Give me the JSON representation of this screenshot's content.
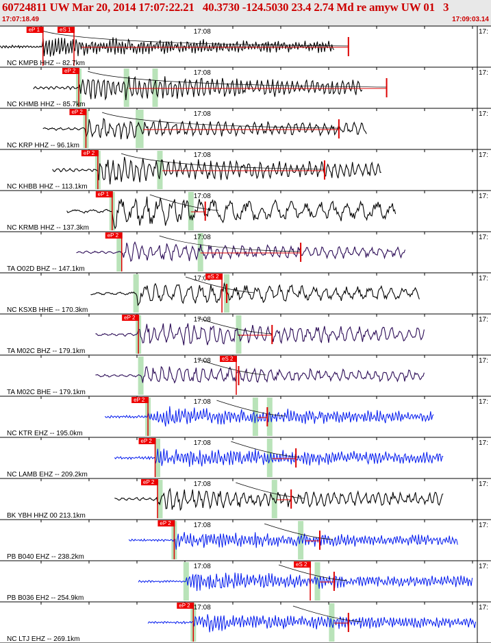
{
  "header": {
    "title": "60724811 UW Mar 20, 2014 17:07:22.21   40.3730 -124.5030 23.4 2.74 Md re amyw UW 01   3",
    "start_time": "17:07:18.49",
    "end_time": "17:09:03.14"
  },
  "tick_label": "17:08",
  "edge_label": "17:",
  "colors": {
    "header_text": "#cc0000",
    "pick_fill": "#ee0000",
    "s_window": "#b9e3b9",
    "trace_black": "#000000",
    "trace_purple": "#2a0a55",
    "trace_blue": "#0018ee",
    "fit_red": "#dd0000"
  },
  "traces": [
    {
      "station": "NC KMPB HHZ -- 82.7km",
      "color": "black",
      "picks": [
        {
          "label": "eP 1",
          "t": 0.09
        },
        {
          "label": "eS 1",
          "t": 0.155
        }
      ],
      "greens": [],
      "start": 0.0,
      "end": 0.7,
      "onset": 0.09,
      "amp": 0.55,
      "period": 3,
      "fit_start": 0.17,
      "fit_end": 0.73,
      "coda": 0.73
    },
    {
      "station": "NC KHMB HHZ -- 85.7km",
      "color": "black",
      "picks": [
        {
          "label": "eP 2",
          "t": 0.165
        }
      ],
      "greens": [
        0.165,
        0.265,
        0.325
      ],
      "start": 0.07,
      "end": 0.76,
      "onset": 0.165,
      "amp": 0.7,
      "period": 5,
      "fit_start": 0.27,
      "fit_end": 0.81,
      "coda": 0.81
    },
    {
      "station": "NC KRP HHZ -- 96.1km",
      "color": "black",
      "picks": [
        {
          "label": "eP 2",
          "t": 0.18
        }
      ],
      "greens": [
        0.18,
        0.29,
        0.295
      ],
      "start": 0.09,
      "end": 0.77,
      "onset": 0.18,
      "amp": 0.55,
      "period": 7,
      "fit_start": 0.3,
      "fit_end": 0.71,
      "coda": 0.71
    },
    {
      "station": "NC KHBB HHZ -- 113.1km",
      "color": "black",
      "picks": [
        {
          "label": "eP 2",
          "t": 0.205
        }
      ],
      "greens": [
        0.205,
        0.335
      ],
      "start": 0.11,
      "end": 0.8,
      "onset": 0.205,
      "amp": 0.7,
      "period": 6,
      "fit_start": 0.34,
      "fit_end": 0.68,
      "coda": 0.68
    },
    {
      "station": "NC KRMB HHZ -- 137.3km",
      "color": "black",
      "picks": [
        {
          "label": "eP 1",
          "t": 0.235
        }
      ],
      "greens": [
        0.235,
        0.4
      ],
      "start": 0.14,
      "end": 0.83,
      "onset": 0.235,
      "amp": 0.8,
      "period": 14,
      "fit_start": 0.4,
      "fit_end": 0.43,
      "coda": 0.43
    },
    {
      "station": "TA O02D BHZ -- 147.1km",
      "color": "purple",
      "picks": [
        {
          "label": "eP 2",
          "t": 0.255
        }
      ],
      "greens": [
        0.25,
        0.42
      ],
      "start": 0.16,
      "end": 0.85,
      "onset": 0.255,
      "amp": 0.5,
      "period": 8,
      "fit_start": 0.42,
      "fit_end": 0.63,
      "coda": 0.63
    },
    {
      "station": "NC KSXB HHE -- 170.3km",
      "color": "black",
      "picks": [
        {
          "label": "eS 2",
          "t": 0.465
        }
      ],
      "greens": [
        0.285,
        0.475
      ],
      "start": 0.19,
      "end": 0.88,
      "onset": 0.285,
      "amp": 0.6,
      "period": 11,
      "fit_start": 0.475,
      "fit_end": 0.48,
      "coda": 0.475
    },
    {
      "station": "TA M02C BHZ -- 179.1km",
      "color": "purple",
      "picks": [
        {
          "label": "eP 2",
          "t": 0.29
        }
      ],
      "greens": [
        0.29,
        0.5
      ],
      "start": 0.2,
      "end": 0.89,
      "onset": 0.29,
      "amp": 0.65,
      "period": 8,
      "fit_start": 0.5,
      "fit_end": 0.57,
      "coda": 0.57
    },
    {
      "station": "TA M02C BHE -- 179.1km",
      "color": "purple",
      "picks": [
        {
          "label": "eS 2",
          "t": 0.495
        }
      ],
      "greens": [
        0.295
      ],
      "start": 0.2,
      "end": 0.89,
      "onset": 0.295,
      "amp": 0.5,
      "period": 8,
      "fit_start": 0.5,
      "fit_end": 0.5,
      "coda": 0.5
    },
    {
      "station": "NC KTR EHZ -- 195.0km",
      "color": "blue",
      "picks": [
        {
          "label": "eP 2",
          "t": 0.31
        }
      ],
      "greens": [
        0.31,
        0.535,
        0.565
      ],
      "start": 0.22,
      "end": 0.91,
      "onset": 0.31,
      "amp": 0.55,
      "period": 3,
      "fit_start": 0.54,
      "fit_end": 0.56,
      "coda": 0.56
    },
    {
      "station": "NC LAMB EHZ -- 209.2km",
      "color": "blue",
      "picks": [
        {
          "label": "eP 2",
          "t": 0.325
        }
      ],
      "greens": [
        0.33,
        0.565
      ],
      "start": 0.24,
      "end": 0.93,
      "onset": 0.325,
      "amp": 0.55,
      "period": 3,
      "fit_start": 0.57,
      "fit_end": 0.62,
      "coda": 0.62
    },
    {
      "station": "BK YBH HHZ 00 213.1km",
      "color": "black",
      "picks": [
        {
          "label": "eP 2",
          "t": 0.33
        }
      ],
      "greens": [
        0.335,
        0.575
      ],
      "start": 0.24,
      "end": 0.93,
      "onset": 0.33,
      "amp": 0.6,
      "period": 7,
      "fit_start": 0.58,
      "fit_end": 0.61,
      "coda": 0.61
    },
    {
      "station": "PB B040 EHZ -- 238.2km",
      "color": "blue",
      "picks": [
        {
          "label": "eP 2",
          "t": 0.365
        }
      ],
      "greens": [
        0.365,
        0.63
      ],
      "start": 0.27,
      "end": 0.96,
      "onset": 0.365,
      "amp": 0.5,
      "period": 3,
      "fit_start": 0.64,
      "fit_end": 0.67,
      "coda": 0.67
    },
    {
      "station": "PB B036 EH2 -- 254.9km",
      "color": "blue",
      "picks": [
        {
          "label": "eS 2",
          "t": 0.65
        }
      ],
      "greens": [
        0.39,
        0.665
      ],
      "start": 0.29,
      "end": 0.99,
      "onset": 0.39,
      "amp": 0.5,
      "period": 3,
      "fit_start": 0.67,
      "fit_end": 0.7,
      "coda": 0.7
    },
    {
      "station": "NC LTJ EHZ -- 269.1km",
      "color": "blue",
      "picks": [
        {
          "label": "eP 2",
          "t": 0.405
        }
      ],
      "greens": [
        0.405,
        0.695
      ],
      "start": 0.31,
      "end": 1.0,
      "onset": 0.405,
      "amp": 0.5,
      "period": 3,
      "fit_start": 0.7,
      "fit_end": 0.73,
      "coda": 0.73
    }
  ]
}
